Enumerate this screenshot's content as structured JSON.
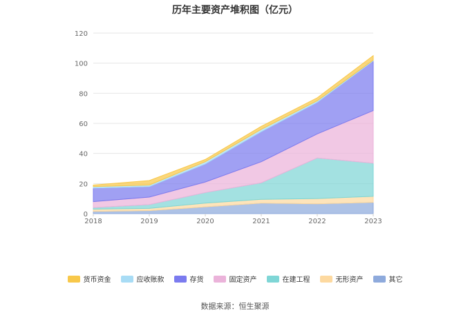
{
  "chart_data": {
    "type": "area",
    "stacked": true,
    "title": "历年主要资产堆积图（亿元）",
    "xlabel": "",
    "ylabel": "",
    "categories": [
      "2018",
      "2019",
      "2020",
      "2021",
      "2022",
      "2023"
    ],
    "ylim": [
      0,
      120
    ],
    "yticks": [
      0,
      20,
      40,
      60,
      80,
      100,
      120
    ],
    "grid": true,
    "legend_position": "bottom",
    "series": [
      {
        "name": "其它",
        "color": "#8eaadc",
        "values": [
          1.5,
          2,
          4.5,
          7,
          6.5,
          7.5
        ]
      },
      {
        "name": "无形资产",
        "color": "#fdd9a0",
        "values": [
          1.5,
          1.5,
          2.5,
          2.5,
          3.5,
          4
        ]
      },
      {
        "name": "在建工程",
        "color": "#7fd6d6",
        "values": [
          1,
          2.5,
          7,
          11,
          27,
          22
        ]
      },
      {
        "name": "固定资产",
        "color": "#ebb3da",
        "values": [
          4,
          5,
          7,
          14,
          16,
          35
        ]
      },
      {
        "name": "存货",
        "color": "#7b7bef",
        "values": [
          9,
          7,
          12,
          20,
          21,
          33
        ]
      },
      {
        "name": "应收账款",
        "color": "#a8dcf5",
        "values": [
          1,
          1,
          1.5,
          1.5,
          1,
          0.5
        ]
      },
      {
        "name": "货币资金",
        "color": "#f8c84a",
        "values": [
          1,
          3,
          1.5,
          2,
          2,
          3
        ]
      }
    ],
    "legend_order": [
      "货币资金",
      "应收账款",
      "存货",
      "固定资产",
      "在建工程",
      "无形资产",
      "其它"
    ]
  },
  "source_note": "数据来源：恒生聚源"
}
